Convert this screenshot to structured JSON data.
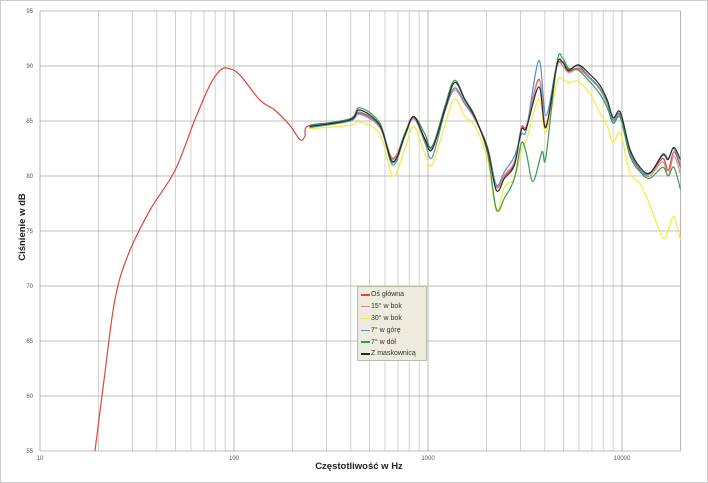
{
  "chart_data": {
    "type": "line",
    "title": "",
    "xlabel": "Częstotliwość w Hz",
    "ylabel": "Ciśnienie w dB",
    "xscale": "log",
    "xlim": [
      10,
      20000
    ],
    "ylim": [
      55,
      95
    ],
    "xticks": [
      "10",
      "100",
      "1000",
      "10000"
    ],
    "yticks": [
      "55",
      "60",
      "65",
      "70",
      "75",
      "80",
      "85",
      "90",
      "95"
    ],
    "grid": true,
    "legend_position": "center",
    "series": [
      {
        "name": "Oś główna",
        "color": "#e0453b",
        "x": [
          19.2,
          21.4,
          24.3,
          28.4,
          36.9,
          49.6,
          62.8,
          75.3,
          84.7,
          93,
          107,
          136,
          162,
          194,
          219,
          232,
          245,
          395,
          445,
          565,
          658,
          760,
          845,
          965,
          1050,
          1220,
          1370,
          1550,
          1750,
          2030,
          2250,
          2480,
          2790,
          3030,
          3220,
          3730,
          4050,
          4620,
          4950,
          5300,
          5970,
          6870,
          7660,
          8400,
          9000,
          9800,
          11000,
          12500,
          13950,
          16200,
          17300,
          18500,
          20000
        ],
        "y": [
          55,
          61.5,
          68.7,
          72.8,
          76.9,
          80.5,
          85.1,
          88.3,
          89.6,
          89.8,
          89.2,
          86.9,
          86,
          84.6,
          83.3,
          83.6,
          84.6,
          85.0,
          85.7,
          84.5,
          81.6,
          83.8,
          85.3,
          83.4,
          82.7,
          86,
          88,
          86.6,
          85.2,
          82.6,
          79.1,
          80,
          81.2,
          84.4,
          84.6,
          88.8,
          84.5,
          90.0,
          90.0,
          89.5,
          89.8,
          88.9,
          88.0,
          86.6,
          85,
          85.5,
          82.2,
          80.5,
          80.2,
          81.6,
          80.5,
          82.2,
          80.8
        ]
      },
      {
        "name": "15° w bok",
        "color": "#d98c8c",
        "x": [
          245,
          395,
          445,
          565,
          658,
          760,
          845,
          965,
          1050,
          1220,
          1370,
          1550,
          1750,
          2030,
          2250,
          2480,
          2790,
          3030,
          3220,
          3730,
          4050,
          4620,
          4950,
          5300,
          5970,
          6870,
          7660,
          8400,
          9000,
          9800,
          11000,
          12500,
          13950,
          16200,
          17300,
          18500,
          20000
        ],
        "y": [
          84.5,
          85.0,
          85.6,
          84.4,
          81.5,
          83.7,
          85.2,
          83.2,
          82.5,
          85.9,
          87.8,
          86.5,
          85.1,
          82.5,
          79.0,
          80.1,
          81.3,
          84.3,
          84.5,
          88.7,
          84.6,
          89.9,
          90.0,
          89.4,
          89.7,
          88.8,
          87.9,
          86.5,
          85.0,
          85.4,
          82.0,
          80.4,
          80.0,
          81.3,
          80.0,
          81.8,
          80.2
        ]
      },
      {
        "name": "30° w bok",
        "color": "#f2ec3c",
        "x": [
          245,
          395,
          445,
          565,
          658,
          760,
          845,
          965,
          1050,
          1220,
          1370,
          1550,
          1750,
          2030,
          2250,
          2480,
          2790,
          3030,
          3220,
          3730,
          4050,
          4620,
          4950,
          5300,
          5970,
          6870,
          7660,
          8400,
          9000,
          9800,
          11000,
          12500,
          13950,
          16200,
          17300,
          18500,
          20000
        ],
        "y": [
          84.3,
          84.6,
          84.9,
          83.8,
          80.0,
          82.5,
          84.5,
          82.0,
          81.0,
          84.6,
          87.0,
          85.4,
          84.5,
          81.5,
          76.8,
          79.0,
          79.8,
          82.3,
          83.3,
          87.0,
          84.0,
          88.5,
          88.8,
          88.5,
          88.6,
          87.4,
          85.8,
          84.5,
          83.0,
          83.9,
          80.3,
          79.2,
          77.3,
          74.4,
          75.0,
          76.3,
          74.2
        ]
      },
      {
        "name": "7° w górę",
        "color": "#5b8fc2",
        "x": [
          245,
          395,
          445,
          565,
          658,
          760,
          845,
          965,
          1050,
          1220,
          1370,
          1550,
          1750,
          2030,
          2250,
          2480,
          2790,
          3030,
          3220,
          3730,
          4050,
          4620,
          4950,
          5300,
          5970,
          6870,
          7660,
          8400,
          9000,
          9800,
          11000,
          12500,
          13950,
          16200,
          17300,
          18500,
          20000
        ],
        "y": [
          84.4,
          85.0,
          85.8,
          84.5,
          81.0,
          83.6,
          85.4,
          83.0,
          81.7,
          85.8,
          88.0,
          86.6,
          85.2,
          82.4,
          79.2,
          80.4,
          81.8,
          83.8,
          84.3,
          90.5,
          85.5,
          90.2,
          90.4,
          89.7,
          90.0,
          88.9,
          88.0,
          86.7,
          85.1,
          85.6,
          82.1,
          80.5,
          80.2,
          82.0,
          81.6,
          82.5,
          81.0
        ]
      },
      {
        "name": "7° w dół",
        "color": "#3a9a4c",
        "x": [
          245,
          395,
          445,
          565,
          658,
          760,
          845,
          965,
          1050,
          1220,
          1370,
          1550,
          1750,
          2030,
          2250,
          2480,
          2790,
          3030,
          3220,
          3475,
          3870,
          4050,
          4620,
          4950,
          5300,
          5970,
          6870,
          7660,
          8400,
          9000,
          9800,
          11000,
          12500,
          13950,
          16200,
          17300,
          18500,
          20000
        ],
        "y": [
          84.6,
          85.2,
          86.2,
          84.8,
          81.2,
          83.9,
          85.4,
          83.8,
          82.6,
          86.3,
          88.7,
          87.0,
          85.4,
          82.0,
          77.0,
          78.0,
          79.8,
          83.0,
          82.0,
          79.5,
          82.2,
          81.7,
          90.3,
          90.7,
          89.8,
          89.6,
          88.5,
          87.5,
          86.2,
          84.8,
          85.3,
          81.8,
          80.3,
          79.8,
          80.8,
          80.0,
          80.8,
          78.8
        ]
      },
      {
        "name": "Z maskownicą",
        "color": "#2a2a2a",
        "x": [
          245,
          395,
          445,
          565,
          658,
          760,
          845,
          965,
          1050,
          1220,
          1370,
          1550,
          1750,
          2030,
          2250,
          2480,
          2790,
          3030,
          3220,
          3730,
          4050,
          4620,
          4950,
          5300,
          5970,
          6870,
          7660,
          8400,
          9000,
          9800,
          11000,
          12500,
          13950,
          16200,
          17300,
          18500,
          20000
        ],
        "y": [
          84.5,
          85.1,
          86.0,
          84.6,
          81.3,
          83.7,
          85.4,
          83.3,
          82.4,
          86,
          88.5,
          86.9,
          85.3,
          82.4,
          78.7,
          79.8,
          81,
          84.2,
          84.4,
          88.1,
          84.4,
          90.1,
          90.3,
          89.6,
          90.1,
          89.2,
          88.3,
          86.9,
          85.3,
          85.8,
          82.4,
          80.7,
          80.3,
          81.9,
          81.5,
          82.6,
          81.5
        ]
      }
    ]
  }
}
